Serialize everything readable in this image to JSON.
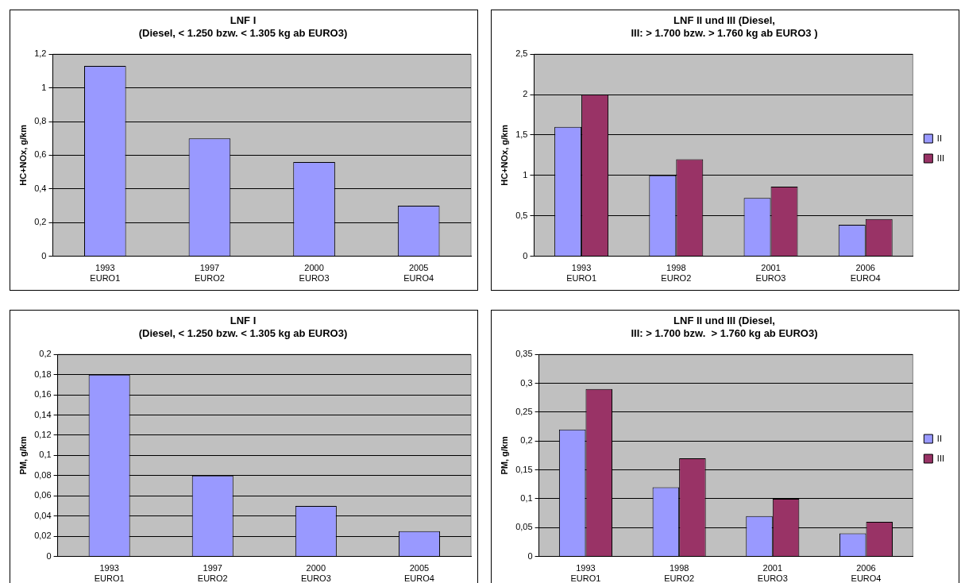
{
  "chart_data": [
    {
      "type": "bar",
      "title": "LNF I\n(Diesel, < 1.250 bzw. < 1.305 kg ab EURO3)",
      "ylabel": "HC+NOx, g/km",
      "categories": [
        "1993\nEURO1",
        "1997\nEURO2",
        "2000\nEURO3",
        "2005\nEURO4"
      ],
      "series": [
        {
          "color": "#9999ff",
          "values": [
            1.13,
            0.7,
            0.56,
            0.3
          ]
        }
      ],
      "ylim": [
        0,
        1.2
      ],
      "yticks": [
        0,
        {
          "value": 0.2,
          "label": "0,2"
        },
        {
          "value": 0.4,
          "label": "0,4"
        },
        {
          "value": 0.6,
          "label": "0,6"
        },
        {
          "value": 0.8,
          "label": "0,8"
        },
        1,
        {
          "value": 1.2,
          "label": "1,2"
        }
      ],
      "grid": "y",
      "legend": false
    },
    {
      "type": "bar",
      "title": "LNF II und III (Diesel,\nIII: > 1.700 bzw. > 1.760 kg ab EURO3 )",
      "ylabel": "HC+NOx, g/km",
      "categories": [
        "1993\nEURO1",
        "1998\nEURO2",
        "2001\nEURO3",
        "2006\nEURO4"
      ],
      "series": [
        {
          "name": "II",
          "color": "#9999ff",
          "values": [
            1.6,
            1.0,
            0.72,
            0.39
          ]
        },
        {
          "name": "III",
          "color": "#993366",
          "values": [
            2.0,
            1.2,
            0.86,
            0.46
          ]
        }
      ],
      "ylim": [
        0,
        2.5
      ],
      "yticks": [
        0,
        {
          "value": 0.5,
          "label": "0,5"
        },
        1,
        {
          "value": 1.5,
          "label": "1,5"
        },
        2,
        {
          "value": 2.5,
          "label": "2,5"
        }
      ],
      "grid": "y",
      "legend": "right"
    },
    {
      "type": "bar",
      "title": "LNF I\n(Diesel, < 1.250 bzw. < 1.305 kg ab EURO3)",
      "ylabel": "PM, g/km",
      "categories": [
        "1993\nEURO1",
        "1997\nEURO2",
        "2000\nEURO3",
        "2005\nEURO4"
      ],
      "series": [
        {
          "color": "#9999ff",
          "values": [
            0.18,
            0.08,
            0.05,
            0.025
          ]
        }
      ],
      "ylim": [
        0,
        0.2
      ],
      "yticks": [
        0,
        {
          "value": 0.02,
          "label": "0,02"
        },
        {
          "value": 0.04,
          "label": "0,04"
        },
        {
          "value": 0.06,
          "label": "0,06"
        },
        {
          "value": 0.08,
          "label": "0,08"
        },
        {
          "value": 0.1,
          "label": "0,1"
        },
        {
          "value": 0.12,
          "label": "0,12"
        },
        {
          "value": 0.14,
          "label": "0,14"
        },
        {
          "value": 0.16,
          "label": "0,16"
        },
        {
          "value": 0.18,
          "label": "0,18"
        },
        {
          "value": 0.2,
          "label": "0,2"
        }
      ],
      "grid": "y",
      "legend": false
    },
    {
      "type": "bar",
      "title": "LNF II und III (Diesel,\nIII: > 1.700 bzw.  > 1.760 kg ab EURO3)",
      "ylabel": "PM, g/km",
      "categories": [
        "1993\nEURO1",
        "1998\nEURO2",
        "2001\nEURO3",
        "2006\nEURO4"
      ],
      "series": [
        {
          "name": "II",
          "color": "#9999ff",
          "values": [
            0.22,
            0.12,
            0.07,
            0.04
          ]
        },
        {
          "name": "III",
          "color": "#993366",
          "values": [
            0.29,
            0.17,
            0.1,
            0.06
          ]
        }
      ],
      "ylim": [
        0,
        0.35
      ],
      "yticks": [
        0,
        {
          "value": 0.05,
          "label": "0,05"
        },
        {
          "value": 0.1,
          "label": "0,1"
        },
        {
          "value": 0.15,
          "label": "0,15"
        },
        {
          "value": 0.2,
          "label": "0,2"
        },
        {
          "value": 0.25,
          "label": "0,25"
        },
        {
          "value": 0.3,
          "label": "0,3"
        },
        {
          "value": 0.35,
          "label": "0,35"
        }
      ],
      "grid": "y",
      "legend": "right"
    }
  ]
}
